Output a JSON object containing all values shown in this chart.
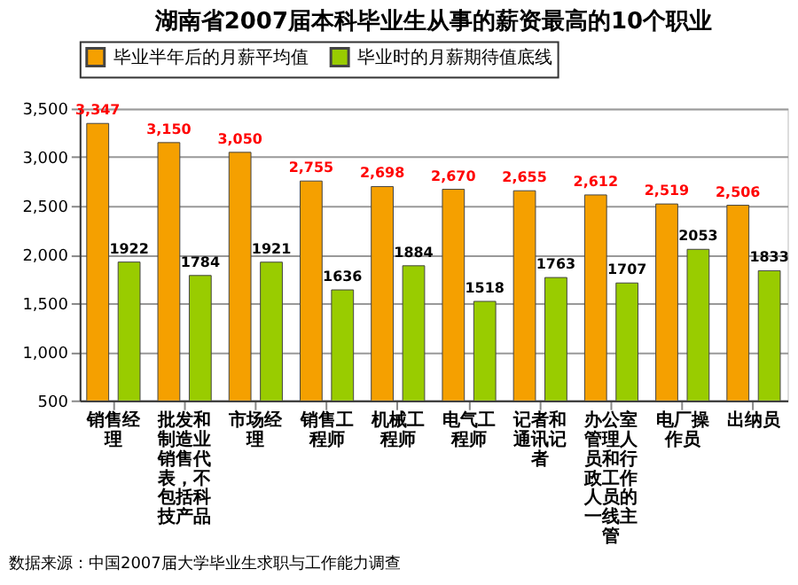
{
  "chart_data": {
    "type": "bar",
    "title": "湖南省2007届本科毕业生从事的薪资最高的10个职业",
    "categories": [
      "销售经理",
      "批发和制造业销售代表，不包括科技产品",
      "市场经理",
      "销售工程师",
      "机械工程师",
      "电气工程师",
      "记者和通讯记者",
      "办公室管理人员和行政工作人员的一线主管",
      "电厂操作员",
      "出纳员"
    ],
    "series": [
      {
        "name": "毕业半年后的月薪平均值",
        "color": "#f5a000",
        "values": [
          3347,
          3150,
          3050,
          2755,
          2698,
          2670,
          2655,
          2612,
          2519,
          2506
        ],
        "value_labels": [
          "3,347",
          "3,150",
          "3,050",
          "2,755",
          "2,698",
          "2,670",
          "2,655",
          "2,612",
          "2,519",
          "2,506"
        ]
      },
      {
        "name": "毕业时的月薪期待值底线",
        "color": "#99cc00",
        "values": [
          1922,
          1784,
          1921,
          1636,
          1884,
          1518,
          1763,
          1707,
          2053,
          1833
        ],
        "value_labels": [
          "1922",
          "1784",
          "1921",
          "1636",
          "1884",
          "1518",
          "1763",
          "1707",
          "2053",
          "1833"
        ]
      }
    ],
    "ylim": [
      500,
      3500
    ],
    "yticks": [
      {
        "value": 500,
        "label": "500"
      },
      {
        "value": 1000,
        "label": "1,000"
      },
      {
        "value": 1500,
        "label": "1,500"
      },
      {
        "value": 2000,
        "label": "2,000"
      },
      {
        "value": 2500,
        "label": "2,500"
      },
      {
        "value": 3000,
        "label": "3,000"
      },
      {
        "value": 3500,
        "label": "3,500"
      }
    ],
    "grid": "y",
    "legend": "top",
    "annotations": [
      "数据来源：中国2007届大学毕业生求职与工作能力调查"
    ]
  }
}
